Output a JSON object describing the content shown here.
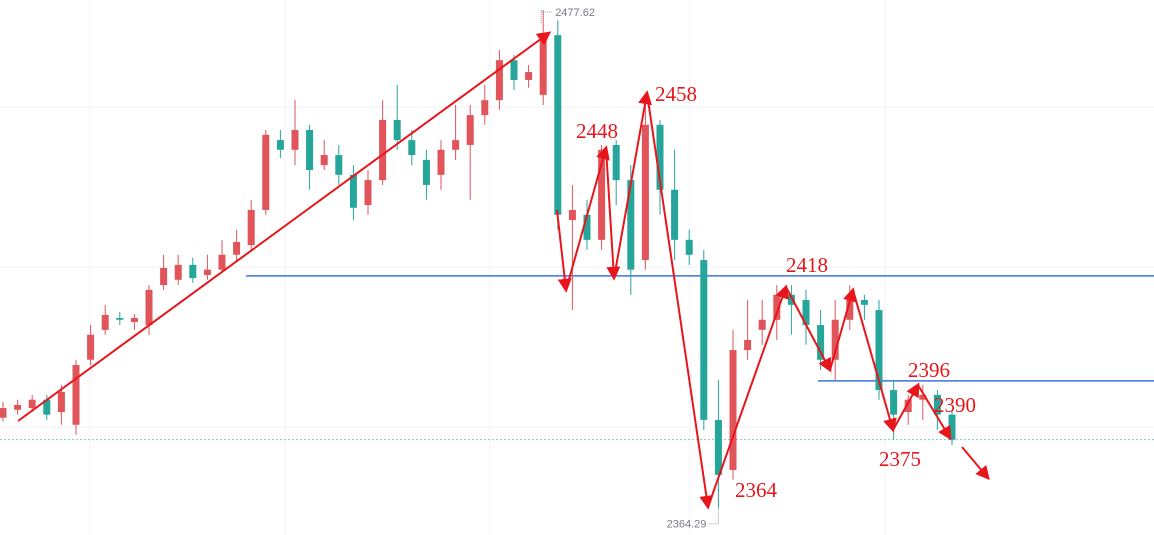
{
  "chart_data": {
    "type": "candlestick",
    "ylim": [
      2358.1,
      2479.9
    ],
    "up_color": "#e0545a",
    "down_color": "#26a69a",
    "open": [
      2384.8,
      2386.6,
      2387.0,
      2388.9,
      2386.1,
      2383.2,
      2398.0,
      2404.8,
      2407.5,
      2406.6,
      2405.9,
      2415.0,
      2416.2,
      2419.6,
      2417.3,
      2418.5,
      2421.9,
      2424.1,
      2432.1,
      2448.0,
      2445.8,
      2450.3,
      2442.3,
      2444.6,
      2440.1,
      2433.2,
      2438.9,
      2452.6,
      2448.0,
      2443.5,
      2440.1,
      2445.8,
      2446.9,
      2453.7,
      2457.1,
      2466.2,
      2461.7,
      2458.3,
      2471.9,
      2429.8,
      2431.0,
      2425.3,
      2446.9,
      2438.9,
      2420.7,
      2451.5,
      2436.7,
      2425.3,
      2420.7,
      2384.3,
      2372.9,
      2400.2,
      2404.8,
      2407.1,
      2412.8,
      2411.6,
      2405.9,
      2398.0,
      2407.1,
      2411.6,
      2409.3,
      2391.1,
      2386.1,
      2388.9,
      2390.0,
      2385.5
    ],
    "close": [
      2387.0,
      2387.7,
      2388.9,
      2385.5,
      2390.7,
      2396.8,
      2403.7,
      2408.2,
      2407.1,
      2407.5,
      2413.9,
      2418.9,
      2419.6,
      2416.6,
      2418.5,
      2421.9,
      2424.8,
      2432.1,
      2449.2,
      2445.8,
      2450.3,
      2441.2,
      2444.6,
      2440.1,
      2432.6,
      2438.9,
      2452.6,
      2448.0,
      2444.6,
      2437.8,
      2445.8,
      2448.0,
      2453.7,
      2457.1,
      2466.2,
      2461.7,
      2463.5,
      2471.9,
      2431.0,
      2432.1,
      2425.3,
      2445.8,
      2438.9,
      2418.5,
      2451.5,
      2436.7,
      2425.3,
      2421.9,
      2384.3,
      2371.8,
      2400.2,
      2402.5,
      2407.1,
      2412.8,
      2410.5,
      2405.9,
      2398.0,
      2407.1,
      2411.6,
      2410.5,
      2391.1,
      2385.5,
      2388.9,
      2390.0,
      2385.5,
      2379.8
    ],
    "high": [
      2388.4,
      2388.9,
      2390.0,
      2390.0,
      2392.3,
      2398.0,
      2405.9,
      2410.5,
      2408.9,
      2408.4,
      2415.0,
      2421.9,
      2421.9,
      2421.2,
      2421.9,
      2425.3,
      2427.6,
      2434.4,
      2450.3,
      2450.3,
      2457.1,
      2451.5,
      2448.0,
      2446.9,
      2442.3,
      2441.2,
      2457.1,
      2460.6,
      2450.3,
      2445.8,
      2448.0,
      2456.0,
      2456.0,
      2460.6,
      2468.5,
      2467.4,
      2465.1,
      2477.62,
      2475.3,
      2437.8,
      2434.4,
      2446.9,
      2448.0,
      2442.3,
      2457.1,
      2452.6,
      2445.8,
      2427.6,
      2423.0,
      2393.4,
      2404.8,
      2411.6,
      2411.6,
      2415.0,
      2415.0,
      2413.9,
      2409.3,
      2411.6,
      2415.0,
      2412.8,
      2411.6,
      2393.4,
      2390.0,
      2392.3,
      2391.1,
      2386.6
    ],
    "low": [
      2383.9,
      2385.5,
      2386.1,
      2384.3,
      2383.2,
      2380.9,
      2396.8,
      2403.7,
      2405.9,
      2404.8,
      2403.7,
      2413.9,
      2415.0,
      2415.5,
      2416.2,
      2418.0,
      2420.3,
      2423.0,
      2431.0,
      2443.9,
      2442.3,
      2436.7,
      2441.2,
      2437.8,
      2429.8,
      2431.0,
      2437.8,
      2445.8,
      2442.3,
      2434.4,
      2436.7,
      2443.5,
      2434.4,
      2451.5,
      2454.9,
      2459.4,
      2459.9,
      2456.0,
      2427.6,
      2409.3,
      2423.0,
      2423.0,
      2433.2,
      2412.8,
      2418.5,
      2431.0,
      2420.7,
      2419.6,
      2382.0,
      2364.29,
      2370.7,
      2398.0,
      2401.4,
      2402.5,
      2403.7,
      2401.4,
      2395.7,
      2393.4,
      2404.8,
      2407.1,
      2388.9,
      2379.8,
      2383.2,
      2384.3,
      2382.0,
      2378.6
    ],
    "levels": [
      2417.1,
      2393.2
    ],
    "level_color": "#3b73e0",
    "last_price": 2379.8,
    "last_price_color": "#7fc8c0",
    "grid": true,
    "annotations": [
      "2448",
      "2458",
      "2418",
      "2396",
      "2390",
      "2375",
      "2364"
    ]
  }
}
